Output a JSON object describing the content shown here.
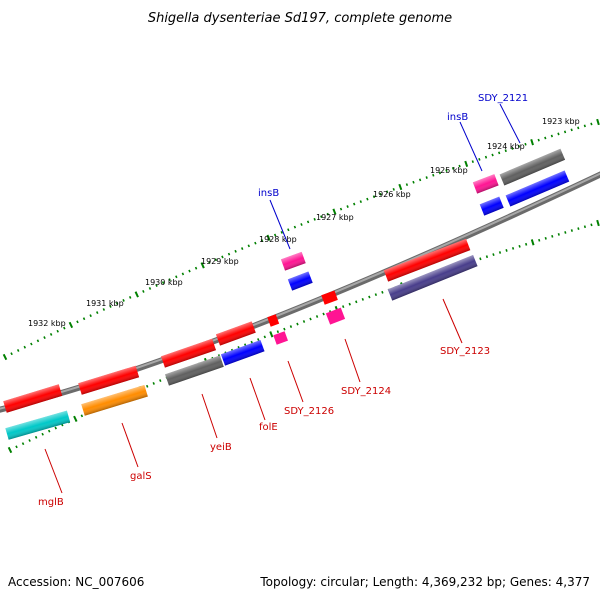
{
  "title": "Shigella dysenteriae Sd197, complete genome",
  "footer": {
    "accession": "Accession: NC_007606",
    "topology": "Topology: circular; Length: 4,369,232 bp; Genes: 4,377"
  },
  "colors": {
    "backbone": "#808080",
    "tick_marks": "#008000",
    "label_top_strand": "#0000cc",
    "label_bottom_strand": "#cc0000"
  },
  "scale_labels": [
    "1932 kbp",
    "1931 kbp",
    "1930 kbp",
    "1929 kbp",
    "1928 kbp",
    "1927 kbp",
    "1926 kbp",
    "1925 kbp",
    "1924 kbp",
    "1923 kbp"
  ],
  "features": [
    {
      "strand": "outer",
      "color": "#ff0000"
    },
    {
      "strand": "outer",
      "color": "#ff0000"
    },
    {
      "strand": "outer",
      "color": "#ff0000"
    },
    {
      "strand": "outer",
      "color": "#ff0000"
    },
    {
      "strand": "outer",
      "color": "#ff0000"
    },
    {
      "strand": "outer",
      "color": "#ff1493"
    },
    {
      "strand": "outer",
      "color": "#ff0000"
    },
    {
      "strand": "outer",
      "color": "#ff1493"
    },
    {
      "strand": "outer",
      "color": "#ff0000"
    },
    {
      "strand": "outer",
      "color": "#606060"
    },
    {
      "strand": "inner",
      "color": "#00c8c8"
    },
    {
      "strand": "inner",
      "color": "#ff8c00"
    },
    {
      "strand": "inner",
      "color": "#606060"
    },
    {
      "strand": "inner",
      "color": "#0000ff"
    },
    {
      "strand": "inner",
      "color": "#ff1493"
    },
    {
      "strand": "inner",
      "color": "#0000ff"
    },
    {
      "strand": "inner",
      "color": "#ff1493"
    },
    {
      "strand": "inner",
      "color": "#483d8b"
    },
    {
      "strand": "inner",
      "color": "#0000ff"
    },
    {
      "strand": "inner",
      "color": "#0000ff"
    }
  ],
  "gene_labels": [
    {
      "text": "mglB",
      "strand": "bottom"
    },
    {
      "text": "galS",
      "strand": "bottom"
    },
    {
      "text": "yeiB",
      "strand": "bottom"
    },
    {
      "text": "folE",
      "strand": "bottom"
    },
    {
      "text": "SDY_2126",
      "strand": "bottom"
    },
    {
      "text": "SDY_2124",
      "strand": "bottom"
    },
    {
      "text": "SDY_2123",
      "strand": "bottom"
    },
    {
      "text": "insB",
      "strand": "top"
    },
    {
      "text": "insB",
      "strand": "top"
    },
    {
      "text": "SDY_2121",
      "strand": "top"
    }
  ]
}
